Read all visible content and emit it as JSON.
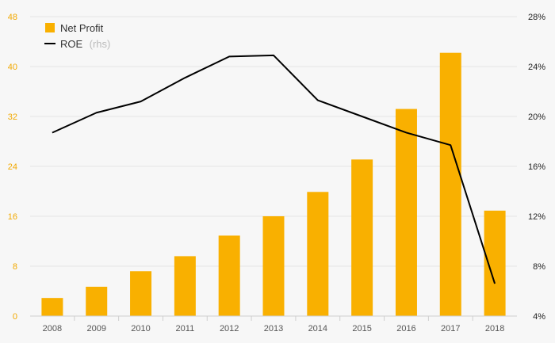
{
  "chart_data": {
    "type": "bar",
    "categories": [
      "2008",
      "2009",
      "2010",
      "2011",
      "2012",
      "2013",
      "2014",
      "2015",
      "2016",
      "2017",
      "2018"
    ],
    "series": [
      {
        "name": "Net Profit",
        "axis": "left",
        "type": "bar",
        "color": "#f9b000",
        "values": [
          2.9,
          4.7,
          7.2,
          9.6,
          12.9,
          16.0,
          19.9,
          25.1,
          33.2,
          42.2,
          16.9
        ]
      },
      {
        "name": "ROE",
        "axis": "right",
        "type": "line",
        "color": "#000000",
        "values": [
          18.7,
          20.3,
          21.2,
          23.1,
          24.8,
          24.9,
          21.3,
          20.0,
          18.7,
          17.7,
          6.6
        ]
      }
    ],
    "ylim_left": [
      0,
      48
    ],
    "yticks_left": [
      "0",
      "8",
      "16",
      "24",
      "32",
      "40",
      "48"
    ],
    "ylim_right": [
      4,
      28
    ],
    "yticks_right": [
      "4%",
      "8%",
      "12%",
      "16%",
      "20%",
      "24%",
      "28%"
    ],
    "grid": true,
    "legend": {
      "position": "top-left",
      "items": [
        {
          "label": "Net Profit",
          "suffix": ""
        },
        {
          "label": "ROE",
          "suffix": "(rhs)"
        }
      ]
    }
  }
}
